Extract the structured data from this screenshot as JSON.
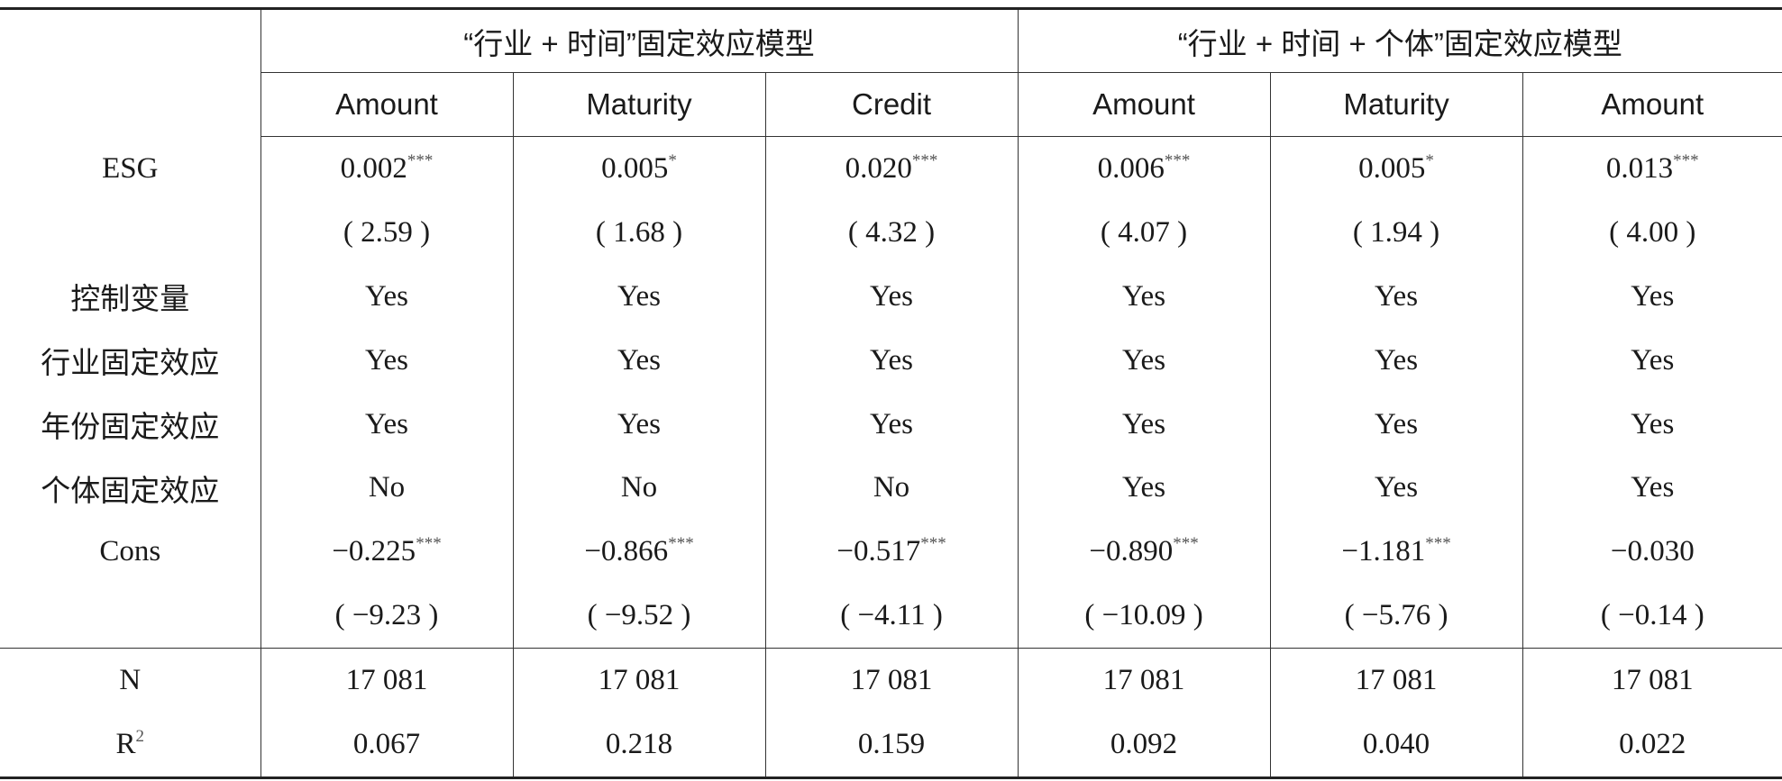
{
  "header": {
    "groups": [
      "“行业 + 时间”固定效应模型",
      "“行业 + 时间 + 个体”固定效应模型"
    ],
    "columns": [
      "Amount",
      "Maturity",
      "Credit",
      "Amount",
      "Maturity",
      "Amount"
    ]
  },
  "table": {
    "rows": [
      {
        "label": "ESG",
        "cells": [
          {
            "text": "0.002",
            "sup": "***"
          },
          {
            "text": "0.005",
            "sup": "*"
          },
          {
            "text": "0.020",
            "sup": "***"
          },
          {
            "text": "0.006",
            "sup": "***"
          },
          {
            "text": "0.005",
            "sup": "*"
          },
          {
            "text": "0.013",
            "sup": "***"
          }
        ]
      },
      {
        "cells": [
          {
            "text": "( 2.59 )"
          },
          {
            "text": "( 1.68 )"
          },
          {
            "text": "( 4.32 )"
          },
          {
            "text": "( 4.07 )"
          },
          {
            "text": "( 1.94 )"
          },
          {
            "text": "( 4.00 )"
          }
        ]
      },
      {
        "label": "控制变量",
        "cells": [
          {
            "text": "Yes"
          },
          {
            "text": "Yes"
          },
          {
            "text": "Yes"
          },
          {
            "text": "Yes"
          },
          {
            "text": "Yes"
          },
          {
            "text": "Yes"
          }
        ]
      },
      {
        "label": "行业固定效应",
        "cells": [
          {
            "text": "Yes"
          },
          {
            "text": "Yes"
          },
          {
            "text": "Yes"
          },
          {
            "text": "Yes"
          },
          {
            "text": "Yes"
          },
          {
            "text": "Yes"
          }
        ]
      },
      {
        "label": "年份固定效应",
        "cells": [
          {
            "text": "Yes"
          },
          {
            "text": "Yes"
          },
          {
            "text": "Yes"
          },
          {
            "text": "Yes"
          },
          {
            "text": "Yes"
          },
          {
            "text": "Yes"
          }
        ]
      },
      {
        "label": "个体固定效应",
        "cells": [
          {
            "text": "No"
          },
          {
            "text": "No"
          },
          {
            "text": "No"
          },
          {
            "text": "Yes"
          },
          {
            "text": "Yes"
          },
          {
            "text": "Yes"
          }
        ]
      },
      {
        "label": "Cons",
        "cells": [
          {
            "text": "−0.225",
            "sup": "***"
          },
          {
            "text": "−0.866",
            "sup": "***"
          },
          {
            "text": "−0.517",
            "sup": "***"
          },
          {
            "text": "−0.890",
            "sup": "***"
          },
          {
            "text": "−1.181",
            "sup": "***"
          },
          {
            "text": "−0.030"
          }
        ]
      },
      {
        "cells": [
          {
            "text": "( −9.23 )"
          },
          {
            "text": "( −9.52 )"
          },
          {
            "text": "( −4.11 )"
          },
          {
            "text": "( −10.09 )"
          },
          {
            "text": "( −5.76 )"
          },
          {
            "text": "( −0.14 )"
          }
        ]
      },
      {
        "label": "N",
        "cells": [
          {
            "text": "17 081"
          },
          {
            "text": "17 081"
          },
          {
            "text": "17 081"
          },
          {
            "text": "17 081"
          },
          {
            "text": "17 081"
          },
          {
            "text": "17 081"
          }
        ]
      },
      {
        "label": {
          "text": "R",
          "sup": "2"
        },
        "cells": [
          {
            "text": "0.067"
          },
          {
            "text": "0.218"
          },
          {
            "text": "0.159"
          },
          {
            "text": "0.092"
          },
          {
            "text": "0.040"
          },
          {
            "text": "0.022"
          }
        ]
      }
    ]
  }
}
